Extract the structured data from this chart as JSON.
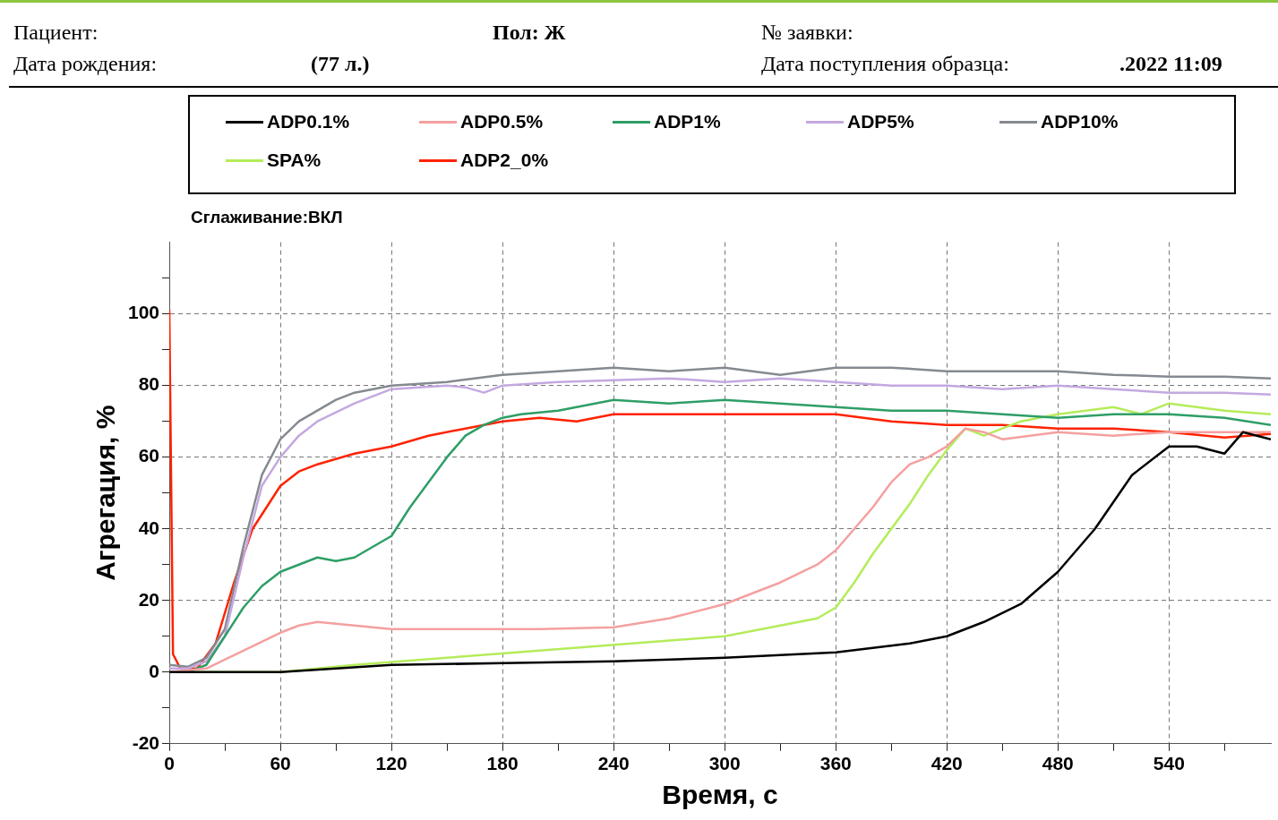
{
  "chart_data": {
    "type": "line",
    "title": "Сглаживание:ВКЛ",
    "xlabel": "Время, с",
    "ylabel": "Агрегация, %",
    "annotations": [
      "Пациент:",
      "Пол: Ж",
      "№ заявки:",
      "Дата рождения:",
      "(77 л.)",
      "Дата поступления образца:",
      ".2022 11:09"
    ],
    "legend": "top",
    "grid": true,
    "line_style": "solid",
    "marker": "none",
    "xlim": [
      0,
      595
    ],
    "xticks": [
      0,
      {
        "value": 30,
        "label": null
      },
      60,
      {
        "value": 90,
        "label": null
      },
      120,
      {
        "value": 150,
        "label": null
      },
      180,
      {
        "value": 210,
        "label": null
      },
      240,
      {
        "value": 270,
        "label": null
      },
      300,
      {
        "value": 330,
        "label": null
      },
      360,
      {
        "value": 390,
        "label": null
      },
      420,
      {
        "value": 450,
        "label": null
      },
      480,
      {
        "value": 510,
        "label": null
      },
      540,
      {
        "value": 570,
        "label": null
      }
    ],
    "ylim": [
      -20,
      120
    ],
    "yticks": [
      -20,
      {
        "value": -10,
        "label": null
      },
      0,
      {
        "value": 10,
        "label": null
      },
      20,
      {
        "value": 30,
        "label": null
      },
      40,
      {
        "value": 50,
        "label": null
      },
      60,
      {
        "value": 70,
        "label": null
      },
      80,
      {
        "value": 90,
        "label": null
      },
      100,
      {
        "value": 110,
        "label": null
      }
    ],
    "series": [
      {
        "name": "ADP0.1%",
        "color": "#000000",
        "x": [
          0,
          60,
          120,
          180,
          240,
          300,
          360,
          400,
          420,
          440,
          460,
          480,
          500,
          520,
          540,
          555,
          570,
          580,
          595
        ],
        "values": [
          0,
          0,
          2,
          2.5,
          3,
          4,
          5.5,
          8,
          10,
          14,
          19,
          28,
          40,
          55,
          63,
          63,
          61,
          67,
          65
        ]
      },
      {
        "name": "ADP0.5%",
        "color": "#f4a0a0",
        "x": [
          0,
          20,
          40,
          60,
          70,
          80,
          100,
          120,
          150,
          200,
          240,
          270,
          300,
          330,
          350,
          360,
          370,
          380,
          390,
          400,
          410,
          420,
          430,
          440,
          450,
          480,
          510,
          540,
          570,
          595
        ],
        "values": [
          0,
          1,
          6,
          11,
          13,
          14,
          13,
          12,
          12,
          12,
          12.5,
          15,
          19,
          25,
          30,
          34,
          40,
          46,
          53,
          58,
          60,
          63,
          68,
          67,
          65,
          67,
          66,
          67,
          67,
          67
        ]
      },
      {
        "name": "ADP1%",
        "color": "#2e9e66",
        "x": [
          0,
          10,
          20,
          30,
          40,
          50,
          60,
          70,
          80,
          90,
          100,
          110,
          120,
          130,
          140,
          150,
          160,
          170,
          180,
          190,
          210,
          240,
          270,
          300,
          330,
          360,
          390,
          420,
          450,
          480,
          510,
          540,
          570,
          595
        ],
        "values": [
          0,
          0,
          2,
          10,
          18,
          24,
          28,
          30,
          32,
          31,
          32,
          35,
          38,
          46,
          53,
          60,
          66,
          69,
          71,
          72,
          73,
          76,
          75,
          76,
          75,
          74,
          73,
          73,
          72,
          71,
          72,
          72,
          71,
          69
        ]
      },
      {
        "name": "ADP5%",
        "color": "#c4a8e0",
        "x": [
          0,
          10,
          20,
          30,
          40,
          50,
          60,
          70,
          80,
          100,
          120,
          150,
          160,
          170,
          180,
          210,
          240,
          270,
          300,
          330,
          360,
          390,
          420,
          450,
          480,
          510,
          540,
          570,
          595
        ],
        "values": [
          1,
          1,
          3,
          10,
          32,
          52,
          60,
          66,
          70,
          75,
          79,
          80,
          79.5,
          78,
          80,
          81,
          81.5,
          82,
          81,
          82,
          81,
          80,
          80,
          79,
          80,
          79,
          78,
          78,
          77.5
        ]
      },
      {
        "name": "ADP10%",
        "color": "#858a90",
        "x": [
          0,
          10,
          20,
          30,
          40,
          50,
          60,
          70,
          80,
          90,
          100,
          120,
          150,
          180,
          210,
          240,
          270,
          300,
          330,
          360,
          390,
          420,
          450,
          480,
          510,
          540,
          570,
          595
        ],
        "values": [
          2,
          1.5,
          4,
          12,
          35,
          55,
          65,
          70,
          73,
          76,
          78,
          80,
          81,
          83,
          84,
          85,
          84,
          85,
          83,
          85,
          85,
          84,
          84,
          84,
          83,
          82.5,
          82.5,
          82
        ]
      },
      {
        "name": "SPA%",
        "color": "#b4ec5a",
        "x": [
          0,
          60,
          100,
          150,
          200,
          250,
          300,
          330,
          350,
          360,
          370,
          380,
          390,
          400,
          410,
          420,
          430,
          440,
          450,
          460,
          480,
          510,
          525,
          540,
          570,
          595
        ],
        "values": [
          0,
          0,
          2,
          4,
          6,
          8,
          10,
          13,
          15,
          18,
          25,
          33,
          40,
          47,
          55,
          62,
          68,
          66,
          68,
          70,
          72,
          74,
          72,
          75,
          73,
          72
        ]
      },
      {
        "name": "ADP2_0%",
        "color": "#ff2200",
        "x": [
          0,
          2,
          6,
          15,
          25,
          35,
          45,
          55,
          60,
          70,
          80,
          100,
          120,
          140,
          160,
          180,
          200,
          220,
          240,
          270,
          300,
          330,
          360,
          390,
          420,
          450,
          480,
          510,
          540,
          570,
          595
        ],
        "values": [
          101,
          5,
          1,
          1,
          8,
          25,
          40,
          48,
          52,
          56,
          58,
          61,
          63,
          66,
          68,
          70,
          71,
          70,
          72,
          72,
          72,
          72,
          72,
          70,
          69,
          69,
          68,
          68,
          67,
          65.5,
          66.5
        ]
      }
    ]
  }
}
